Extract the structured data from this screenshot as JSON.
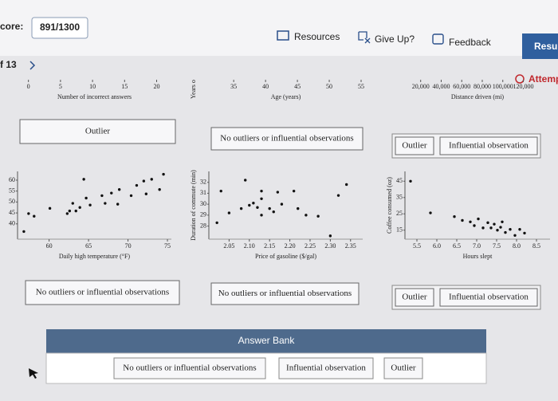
{
  "header": {
    "score_label": "core:",
    "score": "891/1300",
    "buttons": [
      "Resources",
      "Give Up?",
      "Feedback",
      "Resun"
    ],
    "progress": "f 13",
    "attempt": "Attemp"
  },
  "chart_data": [
    {
      "type": "scatter",
      "xlabel": "Number of incorrect answers",
      "x": [],
      "values": [],
      "xlim": [
        -1.7,
        22.3
      ],
      "xticks": [
        0,
        5,
        10,
        15,
        20
      ]
    },
    {
      "type": "scatter",
      "xlabel": "Age (years)",
      "ylabel": "Years o",
      "x": [],
      "values": [],
      "xlim": [
        31.1,
        55.25
      ],
      "xticks": [
        35,
        40,
        45,
        50,
        55
      ]
    },
    {
      "type": "scatter",
      "xlabel": "Distance driven (mi)",
      "x": [],
      "values": [],
      "xlim": [
        4700,
        146000
      ],
      "xticks": [
        {
          "value": 20000,
          "label": "20,000"
        },
        {
          "value": 40000,
          "label": "40,000"
        },
        {
          "value": 60000,
          "label": "60,000"
        },
        {
          "value": 80000,
          "label": "80,000"
        },
        {
          "value": 100000,
          "label": "100,000"
        },
        {
          "value": 120000,
          "label": "120,000"
        }
      ]
    },
    {
      "type": "scatter",
      "xlabel": "Daily high temperature (°F)",
      "x": [
        56.8,
        57.4,
        58.1,
        60.1,
        62.3,
        62.6,
        63.0,
        63.4,
        63.9,
        64.4,
        64.7,
        65.2,
        66.7,
        67.1,
        67.9,
        68.7,
        68.9,
        70.4,
        71.1,
        72.0,
        72.3,
        73.0,
        74.0,
        74.5
      ],
      "values": [
        36.5,
        44.7,
        43.5,
        47.1,
        44.7,
        45.9,
        49.4,
        45.9,
        47.5,
        60.4,
        51.8,
        48.6,
        52.9,
        49.4,
        54.1,
        49.0,
        55.7,
        52.9,
        57.6,
        59.6,
        53.7,
        60.4,
        55.7,
        62.7
      ],
      "xlim": [
        56,
        75.5
      ],
      "ylim": [
        33,
        64
      ],
      "xticks": [
        60,
        65,
        70,
        75
      ],
      "yticks": [
        60,
        55,
        50,
        45,
        40
      ]
    },
    {
      "type": "scatter",
      "xlabel": "Price of gasoline ($/gal)",
      "ylabel": "Duration of commute (min)",
      "x": [
        2.03,
        2.02,
        2.05,
        2.08,
        2.09,
        2.1,
        2.11,
        2.12,
        2.13,
        2.13,
        2.13,
        2.15,
        2.16,
        2.17,
        2.18,
        2.21,
        2.22,
        2.24,
        2.27,
        2.3,
        2.32,
        2.34
      ],
      "values": [
        31.2,
        28.3,
        29.2,
        29.6,
        32.2,
        29.9,
        30.1,
        29.7,
        30.5,
        29.0,
        31.2,
        29.6,
        29.3,
        31.1,
        30.0,
        31.2,
        29.6,
        29.0,
        28.9,
        27.1,
        30.8,
        31.8
      ],
      "xlim": [
        2.0,
        2.38
      ],
      "ylim": [
        26.8,
        33
      ],
      "xticks": [
        2.05,
        {
          "value": 2.1,
          "label": "2.10"
        },
        2.15,
        {
          "value": 2.2,
          "label": "2.20"
        },
        2.25,
        {
          "value": 2.3,
          "label": "2.30"
        },
        2.35
      ],
      "yticks": [
        32,
        31,
        30,
        29,
        28
      ]
    },
    {
      "type": "scatter",
      "xlabel": "Hours slept",
      "ylabel": "Coffee consumed (oz)",
      "x": [
        5.34,
        5.84,
        6.44,
        6.64,
        6.84,
        6.94,
        7.04,
        7.16,
        7.28,
        7.36,
        7.44,
        7.52,
        7.6,
        7.64,
        7.72,
        7.84,
        7.96,
        8.08,
        8.2
      ],
      "values": [
        45.0,
        25.6,
        23.3,
        21.0,
        20.1,
        17.8,
        21.9,
        16.4,
        19.6,
        16.4,
        18.7,
        15.0,
        16.8,
        20.1,
        13.6,
        15.5,
        11.8,
        15.5,
        13.2
      ],
      "xlim": [
        5.2,
        8.84
      ],
      "ylim": [
        9.5,
        51
      ],
      "xticks": [
        5.5,
        {
          "value": 6,
          "label": "6.0"
        },
        6.5,
        {
          "value": 7,
          "label": "7.0"
        },
        7.5,
        {
          "value": 8,
          "label": "8.0"
        },
        8.5
      ],
      "yticks": [
        45,
        35,
        25,
        15
      ]
    }
  ],
  "answers": [
    [
      "Outlier"
    ],
    [
      "No outliers or influential observations"
    ],
    [
      "Outlier",
      "Influential observation"
    ],
    [
      "No outliers or influential observations"
    ],
    [
      "No outliers or influential observations"
    ],
    [
      "Outlier",
      "Influential observation"
    ]
  ],
  "answer_bank": {
    "title": "Answer Bank",
    "items": [
      "No outliers or influential observations",
      "Influential observation",
      "Outlier"
    ]
  }
}
